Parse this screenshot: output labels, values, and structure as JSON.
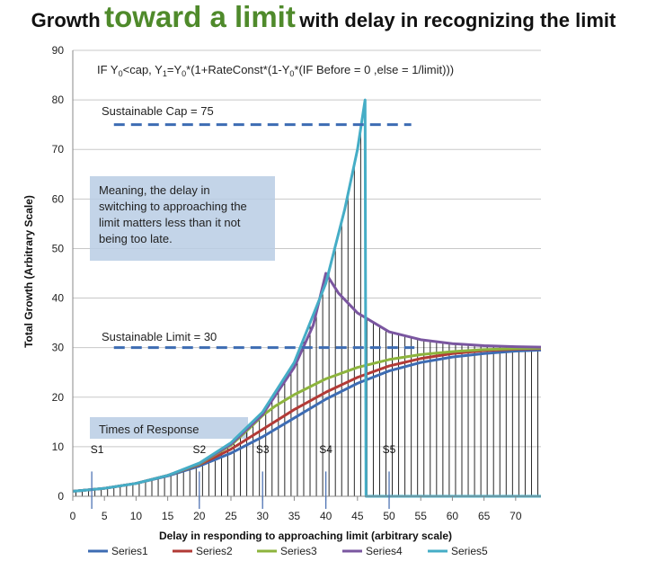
{
  "title": {
    "part1": "Growth",
    "part2": "toward a limit",
    "part3": "with delay in recognizing the limit"
  },
  "colors": {
    "title_accent": "#4f8a2b",
    "series1": "#3d6cb3",
    "series2": "#b23a36",
    "series3": "#8db43d",
    "series4": "#7a56a0",
    "series5": "#45adc6",
    "dashed_lines": "#3d6cb3",
    "note_box": "#b8cce4"
  },
  "formula": {
    "text_a": "IF Y",
    "sub_a": "0",
    "text_b": "<cap,  Y",
    "sub_b": "1",
    "text_c": "=Y",
    "sub_c": "0",
    "text_d": "*(1+RateConst*(1-Y",
    "sub_d": "0",
    "text_e": "*(IF  Before  = 0 ,else = 1/limit)))"
  },
  "annotations": {
    "cap_label": "Sustainable  Cap = 75",
    "limit_label": "Sustainable Limit = 30",
    "note_lines": [
      "Meaning, the  delay in",
      "switching to approaching the",
      "limit matters less than it not",
      "being too late."
    ],
    "times_label": "Times of Response",
    "response_markers": [
      {
        "label": "S1",
        "x": 3
      },
      {
        "label": "S2",
        "x": 20
      },
      {
        "label": "S3",
        "x": 30
      },
      {
        "label": "S4",
        "x": 40
      },
      {
        "label": "S5",
        "x": 50
      }
    ]
  },
  "chart_data": {
    "type": "line",
    "title": "Growth toward a limit with delay in recognizing the limit",
    "xlabel": "Delay in responding to approaching limit (arbitrary scale)",
    "ylabel": "Total Growth (Arbitrary Scale)",
    "xlim": [
      0,
      74
    ],
    "ylim": [
      0,
      90
    ],
    "x_ticks": [
      0,
      5,
      10,
      15,
      20,
      25,
      30,
      35,
      40,
      45,
      50,
      55,
      60,
      65,
      70
    ],
    "y_ticks": [
      0,
      10,
      20,
      30,
      40,
      50,
      60,
      70,
      80,
      90
    ],
    "grid": "horizontal",
    "legend_position": "bottom",
    "reference_lines": [
      {
        "name": "Sustainable Cap",
        "y": 75
      },
      {
        "name": "Sustainable Limit",
        "y": 30
      }
    ],
    "series": [
      {
        "name": "Series1",
        "x": [
          0,
          5,
          10,
          15,
          20,
          25,
          30,
          35,
          40,
          45,
          50,
          55,
          60,
          65,
          70,
          74
        ],
        "y": [
          1.0,
          1.6,
          2.6,
          4.1,
          6.1,
          8.7,
          12.0,
          15.8,
          19.6,
          22.8,
          25.3,
          27.0,
          28.1,
          28.8,
          29.3,
          29.5
        ]
      },
      {
        "name": "Series2",
        "x": [
          0,
          5,
          10,
          15,
          20,
          22,
          25,
          30,
          35,
          40,
          45,
          50,
          55,
          60,
          65,
          70,
          74
        ],
        "y": [
          1.0,
          1.6,
          2.6,
          4.2,
          6.4,
          7.6,
          9.5,
          13.5,
          17.5,
          21.0,
          24.0,
          26.3,
          27.8,
          28.8,
          29.4,
          29.7,
          29.8
        ]
      },
      {
        "name": "Series3",
        "x": [
          0,
          5,
          10,
          15,
          20,
          25,
          28,
          30,
          32,
          35,
          40,
          45,
          50,
          55,
          60,
          65,
          70,
          74
        ],
        "y": [
          1.0,
          1.6,
          2.6,
          4.2,
          6.5,
          10.3,
          13.8,
          16.3,
          18.2,
          20.5,
          23.7,
          26.0,
          27.6,
          28.6,
          29.2,
          29.6,
          29.8,
          29.9
        ]
      },
      {
        "name": "Series4",
        "x": [
          0,
          5,
          10,
          15,
          20,
          25,
          30,
          35,
          38,
          40,
          42,
          45,
          50,
          55,
          60,
          65,
          70,
          74
        ],
        "y": [
          1.0,
          1.6,
          2.6,
          4.2,
          6.6,
          10.5,
          16.5,
          26.0,
          34.5,
          45.0,
          41.0,
          37.0,
          33.2,
          31.6,
          30.8,
          30.4,
          30.2,
          30.1
        ]
      },
      {
        "name": "Series5",
        "x": [
          0,
          5,
          10,
          15,
          20,
          25,
          30,
          35,
          40,
          43,
          45,
          46.2,
          47,
          48,
          50,
          55,
          60,
          65,
          70,
          74
        ],
        "y": [
          1.0,
          1.6,
          2.6,
          4.2,
          6.7,
          10.8,
          17.0,
          27.0,
          43.0,
          58.0,
          70.0,
          80.0,
          0,
          0,
          0,
          0,
          0,
          0,
          0,
          0
        ]
      }
    ]
  }
}
